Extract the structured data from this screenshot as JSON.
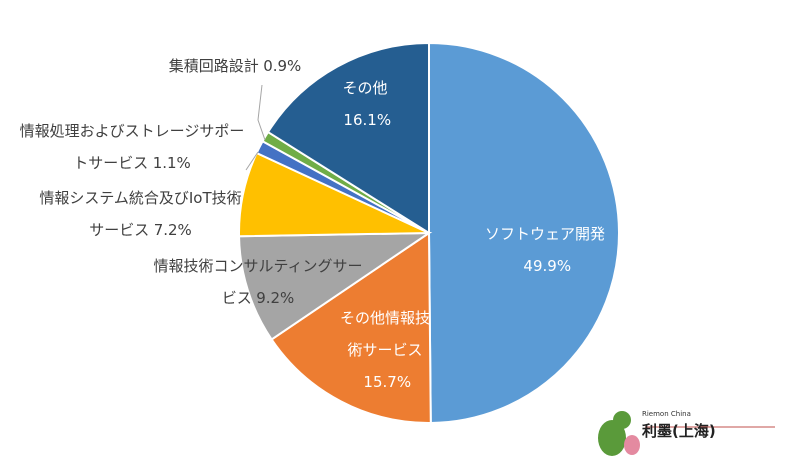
{
  "chart_data": {
    "type": "pie",
    "categories": [
      "ソフトウェア開発",
      "その他情報技術サービス",
      "情報技術コンサルティングサービス",
      "情報システム統合及びIoT技術サービス",
      "情報処理およびストレージサポートサービス",
      "集積回路設計",
      "その他"
    ],
    "values": [
      49.9,
      15.7,
      9.2,
      7.2,
      1.1,
      0.9,
      16.1
    ],
    "value_labels": [
      "49.9%",
      "15.7%",
      "9.2%",
      "7.2%",
      "1.1%",
      "0.9%",
      "16.1%"
    ],
    "colors": [
      "#5b9bd5",
      "#ed7d31",
      "#a5a5a5",
      "#ffc000",
      "#4472c4",
      "#70ad47",
      "#255e91"
    ]
  },
  "logo": {
    "en": "Riemon China",
    "cn": "利墨(上海)"
  }
}
